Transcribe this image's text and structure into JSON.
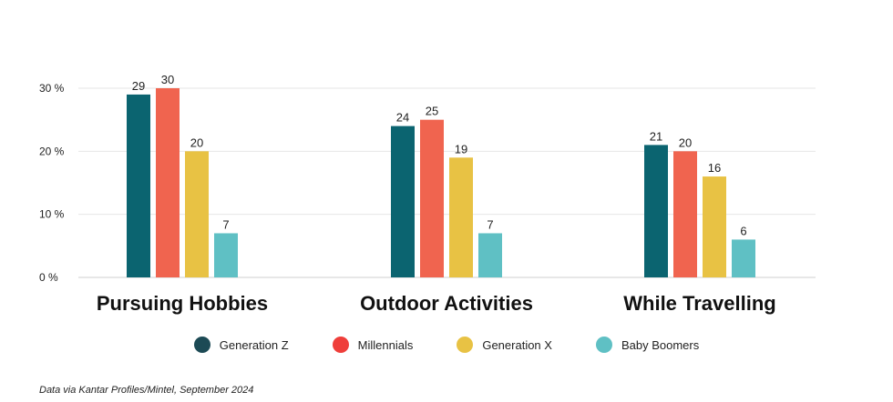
{
  "chart_data": {
    "type": "bar",
    "categories": [
      "Pursuing Hobbies",
      "Outdoor Activities",
      "While Travelling"
    ],
    "series": [
      {
        "name": "Generation Z",
        "color": "#0b6470",
        "values": [
          29,
          24,
          21
        ]
      },
      {
        "name": "Millennials",
        "color": "#f0644f",
        "values": [
          30,
          25,
          20
        ]
      },
      {
        "name": "Generation X",
        "color": "#e8c244",
        "values": [
          20,
          19,
          16
        ]
      },
      {
        "name": "Baby Boomers",
        "color": "#5fc0c4",
        "values": [
          7,
          7,
          6
        ]
      }
    ],
    "yticks": [
      {
        "value": 0,
        "label": "0 %"
      },
      {
        "value": 10,
        "label": "10 %"
      },
      {
        "value": 20,
        "label": "20 %"
      },
      {
        "value": 30,
        "label": "30 %"
      }
    ],
    "ylim": [
      0,
      30
    ],
    "grid": true,
    "legend_position": "bottom"
  },
  "legend": {
    "items": [
      {
        "label": "Generation Z",
        "color": "#1c4a55"
      },
      {
        "label": "Millennials",
        "color": "#ef3e3a"
      },
      {
        "label": "Generation X",
        "color": "#e8c244"
      },
      {
        "label": "Baby Boomers",
        "color": "#5fc0c4"
      }
    ]
  },
  "source_note": "Data via Kantar Profiles/Mintel, September 2024"
}
